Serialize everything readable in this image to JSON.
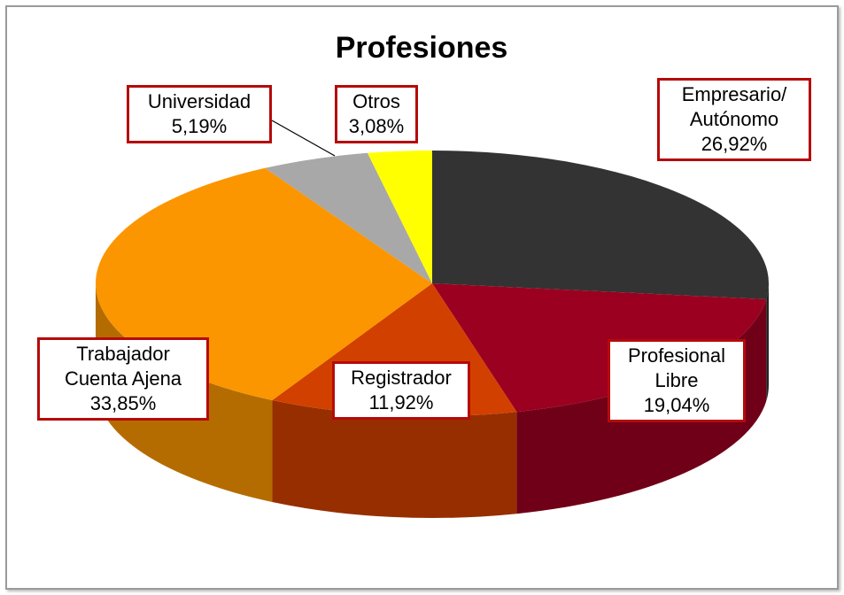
{
  "chart_data": {
    "type": "pie3d",
    "title": "Profesiones",
    "categories": [
      "Empresario/\nAutónomo",
      "Profesional\nLibre",
      "Registrador",
      "Trabajador\nCuenta Ajena",
      "Universidad",
      "Otros"
    ],
    "values": [
      26.92,
      19.04,
      11.92,
      33.85,
      5.19,
      3.08
    ],
    "value_labels": [
      "26,92%",
      "19,04%",
      "11,92%",
      "33,85%",
      "5,19%",
      "3,08%"
    ],
    "colors": [
      "#333333",
      "#9c0020",
      "#d24000",
      "#fb9600",
      "#a8a8a8",
      "#ffff00"
    ]
  }
}
